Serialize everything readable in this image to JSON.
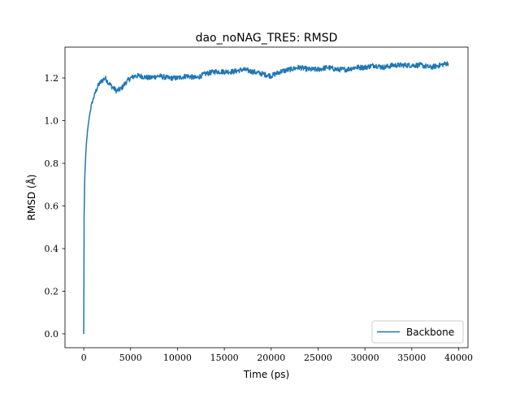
{
  "chart_data": {
    "type": "line",
    "title": "dao_noNAG_TRE5: RMSD",
    "xlabel": "Time (ps)",
    "ylabel": "RMSD (Å)",
    "xlim": [
      -2000,
      41000
    ],
    "ylim": [
      -0.065,
      1.345
    ],
    "xticks": [
      0,
      5000,
      10000,
      15000,
      20000,
      25000,
      30000,
      35000,
      40000
    ],
    "yticks": [
      0.0,
      0.2,
      0.4,
      0.6,
      0.8,
      1.0,
      1.2
    ],
    "ytick_labels": [
      "0.0",
      "0.2",
      "0.4",
      "0.6",
      "0.8",
      "1.0",
      "1.2"
    ],
    "grid": false,
    "legend_position": "lower right",
    "series": [
      {
        "name": "Backbone",
        "color": "#1f77b4",
        "noise_amplitude": 0.012,
        "x": [
          0,
          40,
          100,
          200,
          300,
          400,
          600,
          800,
          1000,
          1300,
          1600,
          2000,
          2300,
          2600,
          3000,
          3500,
          4000,
          4500,
          5000,
          5500,
          6000,
          7000,
          8000,
          9000,
          10000,
          11000,
          12000,
          13000,
          14000,
          15000,
          16000,
          17000,
          18000,
          19000,
          20000,
          21000,
          22000,
          23000,
          24000,
          25000,
          26000,
          27000,
          28000,
          29000,
          30000,
          31000,
          32000,
          33000,
          34000,
          35000,
          36000,
          37000,
          38000,
          38900
        ],
        "y": [
          0.0,
          0.55,
          0.72,
          0.83,
          0.9,
          0.95,
          1.02,
          1.07,
          1.1,
          1.14,
          1.17,
          1.19,
          1.2,
          1.18,
          1.16,
          1.14,
          1.15,
          1.18,
          1.2,
          1.21,
          1.21,
          1.2,
          1.21,
          1.2,
          1.2,
          1.21,
          1.2,
          1.22,
          1.23,
          1.23,
          1.23,
          1.24,
          1.23,
          1.22,
          1.21,
          1.23,
          1.24,
          1.25,
          1.24,
          1.24,
          1.25,
          1.24,
          1.24,
          1.25,
          1.25,
          1.26,
          1.25,
          1.26,
          1.26,
          1.26,
          1.26,
          1.25,
          1.26,
          1.27
        ]
      }
    ]
  }
}
